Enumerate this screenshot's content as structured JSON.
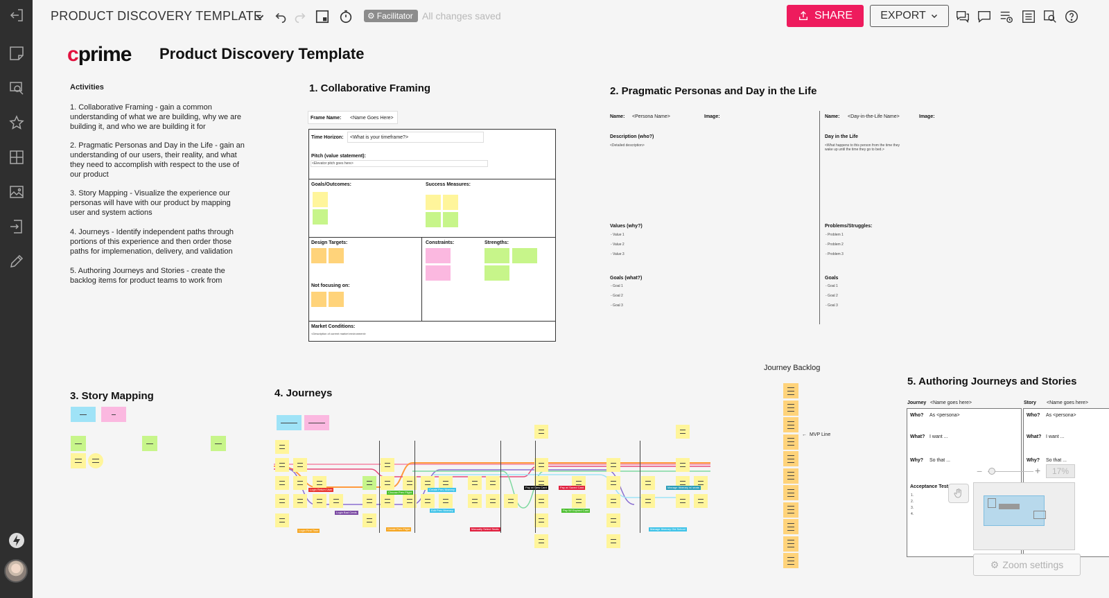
{
  "topbar": {
    "board_title": "PRODUCT DISCOVERY TEMPLATE",
    "facilitator": "Facilitator",
    "saved_status": "All changes saved",
    "share": "SHARE",
    "export": "EXPORT"
  },
  "sidebar": {
    "items": [
      "exit-icon",
      "sticky-note-icon",
      "search-icon",
      "star-icon",
      "grid-icon",
      "image-icon",
      "import-icon",
      "pencil-icon",
      "lightning-icon"
    ]
  },
  "header": {
    "logo_c": "c",
    "logo_rest": "prime",
    "title": "Product Discovery Template"
  },
  "activities": {
    "heading": "Activities",
    "items": [
      "1. Collaborative Framing - gain a common understanding of what we are building, why we are building it, and who we are building it for",
      "2. Pragmatic Personas and Day in the Life - gain an understanding of our users, their reality, and what they need to accomplish with respect to the use of our product",
      "3. Story Mapping - Visualize the experience our personas will have with our product by mapping user and system actions",
      "4. Journeys - Identify independent paths through portions of this experience and then order those paths for implemenation, delivery, and validation",
      "5.  Authoring Journeys and Stories - create the backlog items for product teams to work from"
    ]
  },
  "framing": {
    "title": "1. Collaborative Framing",
    "frame_name_label": "Frame Name:",
    "frame_name_value": "<Name Goes Here>",
    "time_horizon_label": "Time Horizon:",
    "time_horizon_value": "<What is your timeframe?>",
    "pitch_label": "Pitch (value statement):",
    "pitch_value": "<Elevator pitch goes here>",
    "goals_label": "Goals/Outcomes:",
    "success_label": "Success Measures:",
    "design_label": "Design Targets:",
    "constraints_label": "Constraints:",
    "strengths_label": "Strengths:",
    "not_focusing_label": "Not focusing on:",
    "market_label": "Market Conditions:",
    "market_value": "<Description of current market environment>"
  },
  "personas": {
    "title": "2. Pragmatic Personas and Day in the Life",
    "name_label": "Name:",
    "persona_name": "<Persona Name>",
    "image_label": "Image:",
    "description_label": "Description (who?)",
    "description_value": "<Detailed description>",
    "values_label": "Values (why?)",
    "values": [
      "- Value 1",
      "- Value 2",
      "- Value 3"
    ],
    "goals_label": "Goals (what?)",
    "goals": [
      "- Goal 1",
      "- Goal 2",
      "- Goal 3"
    ],
    "dil_name": "<Day-in-the-Life Name>",
    "dil_label": "Day in the Life",
    "dil_value": "<What happens to this person from the time they wake up until the time they go to bed.>",
    "problems_label": "Problems/Struggles:",
    "problems": [
      "- Problem 1",
      "- Problem 2",
      "- Problem 3"
    ],
    "goals2_label": "Goals",
    "goals2": [
      "- Goal 1",
      "- Goal 2",
      "- Goal 3"
    ]
  },
  "story_mapping": {
    "title": "3. Story Mapping"
  },
  "journeys": {
    "title": "4. Journeys",
    "tags": [
      {
        "text": "Login Return User",
        "color": "#e8342e"
      },
      {
        "text": "Login Bad Creds",
        "color": "#7b4aa3"
      },
      {
        "text": "Login First Time",
        "color": "#f5a623"
      },
      {
        "text": "Choose Prev Flight",
        "color": "#4bbf2e"
      },
      {
        "text": "Create Prev Flight",
        "color": "#f5a623"
      },
      {
        "text": "Create Prev Itinerary",
        "color": "#3fc3e8"
      },
      {
        "text": "Edit Prev Itinerary",
        "color": "#3fc3e8"
      },
      {
        "text": "Manually Select Seats",
        "color": "#e0203f"
      },
      {
        "text": "Pay w/ New Card",
        "color": "#111111"
      },
      {
        "text": "Pay w/ Saved Card",
        "color": "#e0203f"
      },
      {
        "text": "Pay W/ Expired Card",
        "color": "#4bbf2e"
      },
      {
        "text": "Manage Itinerary w/ seats",
        "color": "#2a9db8"
      },
      {
        "text": "Manage Itinerary Old School",
        "color": "#3fc3e8"
      }
    ]
  },
  "backlog": {
    "title": "Journey Backlog",
    "mvp": "MVP Line"
  },
  "authoring": {
    "title": "5. Authoring Journeys and Stories",
    "journey_label": "Journey",
    "journey_value": "<Name goes here>",
    "story_label": "Story",
    "story_value": "<Name goes here>",
    "who_label": "Who?",
    "who_value": "As <persona>",
    "what_label": "What?",
    "what_value": "I want ...",
    "why_label": "Why?",
    "why_value": "So that ...",
    "acceptance_label": "Acceptance Tests:",
    "acceptance_items": [
      "1.",
      "2.",
      "3.",
      "4."
    ]
  },
  "zoom": {
    "percent": "17%",
    "settings": "Zoom settings"
  }
}
